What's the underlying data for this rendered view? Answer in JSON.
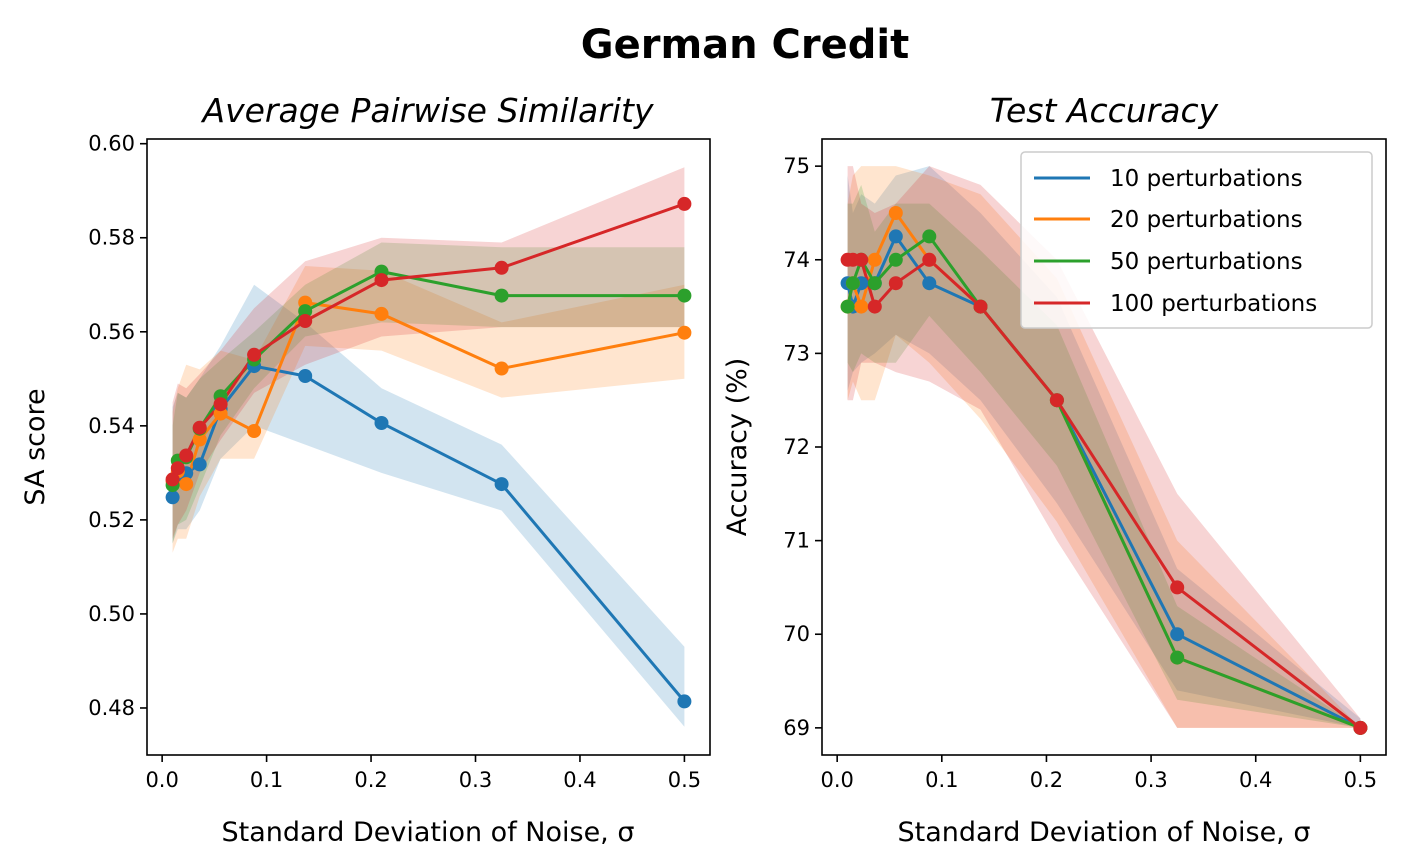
{
  "figure_title": "German Credit",
  "legend_labels": [
    "10 perturbations",
    "20 perturbations",
    "50 perturbations",
    "100 perturbations"
  ],
  "colors": [
    "#1f77b4",
    "#ff7f0e",
    "#2ca02c",
    "#d62728"
  ],
  "chart_data": [
    {
      "type": "line",
      "title": "Average Pairwise Similarity",
      "xlabel": "Standard Deviation of Noise, σ",
      "ylabel": "SA score",
      "xlim": [
        -0.0145,
        0.5245
      ],
      "ylim": [
        0.47,
        0.601
      ],
      "xticks": [
        0.0,
        0.1,
        0.2,
        0.3,
        0.4,
        0.5
      ],
      "xtick_labels": [
        "0.0",
        "0.1",
        "0.2",
        "0.3",
        "0.4",
        "0.5"
      ],
      "yticks": [
        0.48,
        0.5,
        0.52,
        0.54,
        0.56,
        0.58,
        0.6
      ],
      "ytick_labels": [
        "0.48",
        "0.50",
        "0.52",
        "0.54",
        "0.56",
        "0.58",
        "0.60"
      ],
      "x": [
        0.01,
        0.015,
        0.023,
        0.036,
        0.056,
        0.088,
        0.137,
        0.21,
        0.325,
        0.5
      ],
      "series": [
        {
          "name": "10 perturbations",
          "values": [
            0.5248,
            0.5296,
            0.5299,
            0.5318,
            0.5436,
            0.5527,
            0.5506,
            0.5406,
            0.5276,
            0.4814
          ],
          "lower": [
            0.515,
            0.518,
            0.518,
            0.522,
            0.533,
            0.54,
            0.536,
            0.53,
            0.522,
            0.476
          ],
          "upper": [
            0.544,
            0.547,
            0.546,
            0.55,
            0.557,
            0.57,
            0.562,
            0.548,
            0.536,
            0.493
          ]
        },
        {
          "name": "20 perturbations",
          "values": [
            0.5282,
            0.5303,
            0.5276,
            0.5371,
            0.5426,
            0.5389,
            0.5662,
            0.5638,
            0.5522,
            0.5598
          ],
          "lower": [
            0.513,
            0.516,
            0.516,
            0.525,
            0.533,
            0.533,
            0.557,
            0.556,
            0.546,
            0.55
          ],
          "upper": [
            0.543,
            0.548,
            0.553,
            0.552,
            0.556,
            0.554,
            0.574,
            0.573,
            0.562,
            0.57
          ]
        },
        {
          "name": "50 perturbations",
          "values": [
            0.5274,
            0.5326,
            0.5333,
            0.5394,
            0.5463,
            0.5541,
            0.5644,
            0.5728,
            0.5677,
            0.5677
          ],
          "lower": [
            0.515,
            0.519,
            0.52,
            0.527,
            0.538,
            0.548,
            0.559,
            0.562,
            0.561,
            0.561
          ],
          "upper": [
            0.54,
            0.547,
            0.546,
            0.55,
            0.554,
            0.56,
            0.57,
            0.579,
            0.578,
            0.578
          ]
        },
        {
          "name": "100 perturbations",
          "values": [
            0.5286,
            0.531,
            0.5337,
            0.5396,
            0.5446,
            0.5551,
            0.5623,
            0.571,
            0.5736,
            0.5872
          ],
          "lower": [
            0.516,
            0.519,
            0.522,
            0.53,
            0.537,
            0.547,
            0.553,
            0.559,
            0.561,
            0.561
          ],
          "upper": [
            0.545,
            0.549,
            0.548,
            0.551,
            0.556,
            0.565,
            0.575,
            0.58,
            0.579,
            0.595
          ]
        }
      ]
    },
    {
      "type": "line",
      "title": "Test Accuracy",
      "xlabel": "Standard Deviation of Noise, σ",
      "ylabel": "Accuracy (%)",
      "xlim": [
        -0.0145,
        0.5245
      ],
      "ylim": [
        68.71,
        75.29
      ],
      "xticks": [
        0.0,
        0.1,
        0.2,
        0.3,
        0.4,
        0.5
      ],
      "xtick_labels": [
        "0.0",
        "0.1",
        "0.2",
        "0.3",
        "0.4",
        "0.5"
      ],
      "yticks": [
        69,
        70,
        71,
        72,
        73,
        74,
        75
      ],
      "ytick_labels": [
        "69",
        "70",
        "71",
        "72",
        "73",
        "74",
        "75"
      ],
      "legend": "upper right",
      "x": [
        0.01,
        0.015,
        0.023,
        0.036,
        0.056,
        0.088,
        0.137,
        0.21,
        0.325,
        0.5
      ],
      "series": [
        {
          "name": "10 perturbations",
          "values": [
            73.75,
            73.5,
            73.75,
            73.75,
            74.25,
            73.75,
            73.5,
            72.5,
            70.0,
            69.0
          ],
          "lower": [
            72.6,
            72.8,
            72.9,
            73.0,
            73.2,
            73.0,
            72.5,
            71.4,
            69.4,
            69.0
          ],
          "upper": [
            74.9,
            74.5,
            74.7,
            74.6,
            74.9,
            75.0,
            74.5,
            73.6,
            70.7,
            69.1
          ]
        },
        {
          "name": "20 perturbations",
          "values": [
            73.5,
            73.75,
            73.5,
            74.0,
            74.5,
            74.0,
            73.5,
            72.5,
            69.75,
            69.0
          ],
          "lower": [
            72.5,
            72.7,
            72.5,
            72.5,
            73.2,
            72.9,
            72.3,
            71.2,
            69.0,
            69.0
          ],
          "upper": [
            74.6,
            74.9,
            75.0,
            75.0,
            75.0,
            74.9,
            74.7,
            73.8,
            71.0,
            69.0
          ]
        },
        {
          "name": "50 perturbations",
          "values": [
            73.5,
            73.75,
            74.0,
            73.75,
            74.0,
            74.25,
            73.5,
            72.5,
            69.75,
            69.0
          ],
          "lower": [
            72.9,
            72.8,
            73.0,
            72.9,
            72.9,
            73.4,
            72.8,
            71.8,
            69.3,
            69.0
          ],
          "upper": [
            74.6,
            74.6,
            74.8,
            74.3,
            74.6,
            74.6,
            74.1,
            73.3,
            70.3,
            69.0
          ]
        },
        {
          "name": "100 perturbations",
          "values": [
            74.0,
            74.0,
            74.0,
            73.5,
            73.75,
            74.0,
            73.5,
            72.5,
            70.5,
            69.0
          ],
          "lower": [
            72.5,
            72.5,
            72.9,
            72.9,
            72.8,
            72.7,
            72.4,
            71.0,
            69.0,
            69.0
          ],
          "upper": [
            75.0,
            75.0,
            74.6,
            74.5,
            74.6,
            75.0,
            74.8,
            74.0,
            71.5,
            69.1
          ]
        }
      ]
    }
  ]
}
